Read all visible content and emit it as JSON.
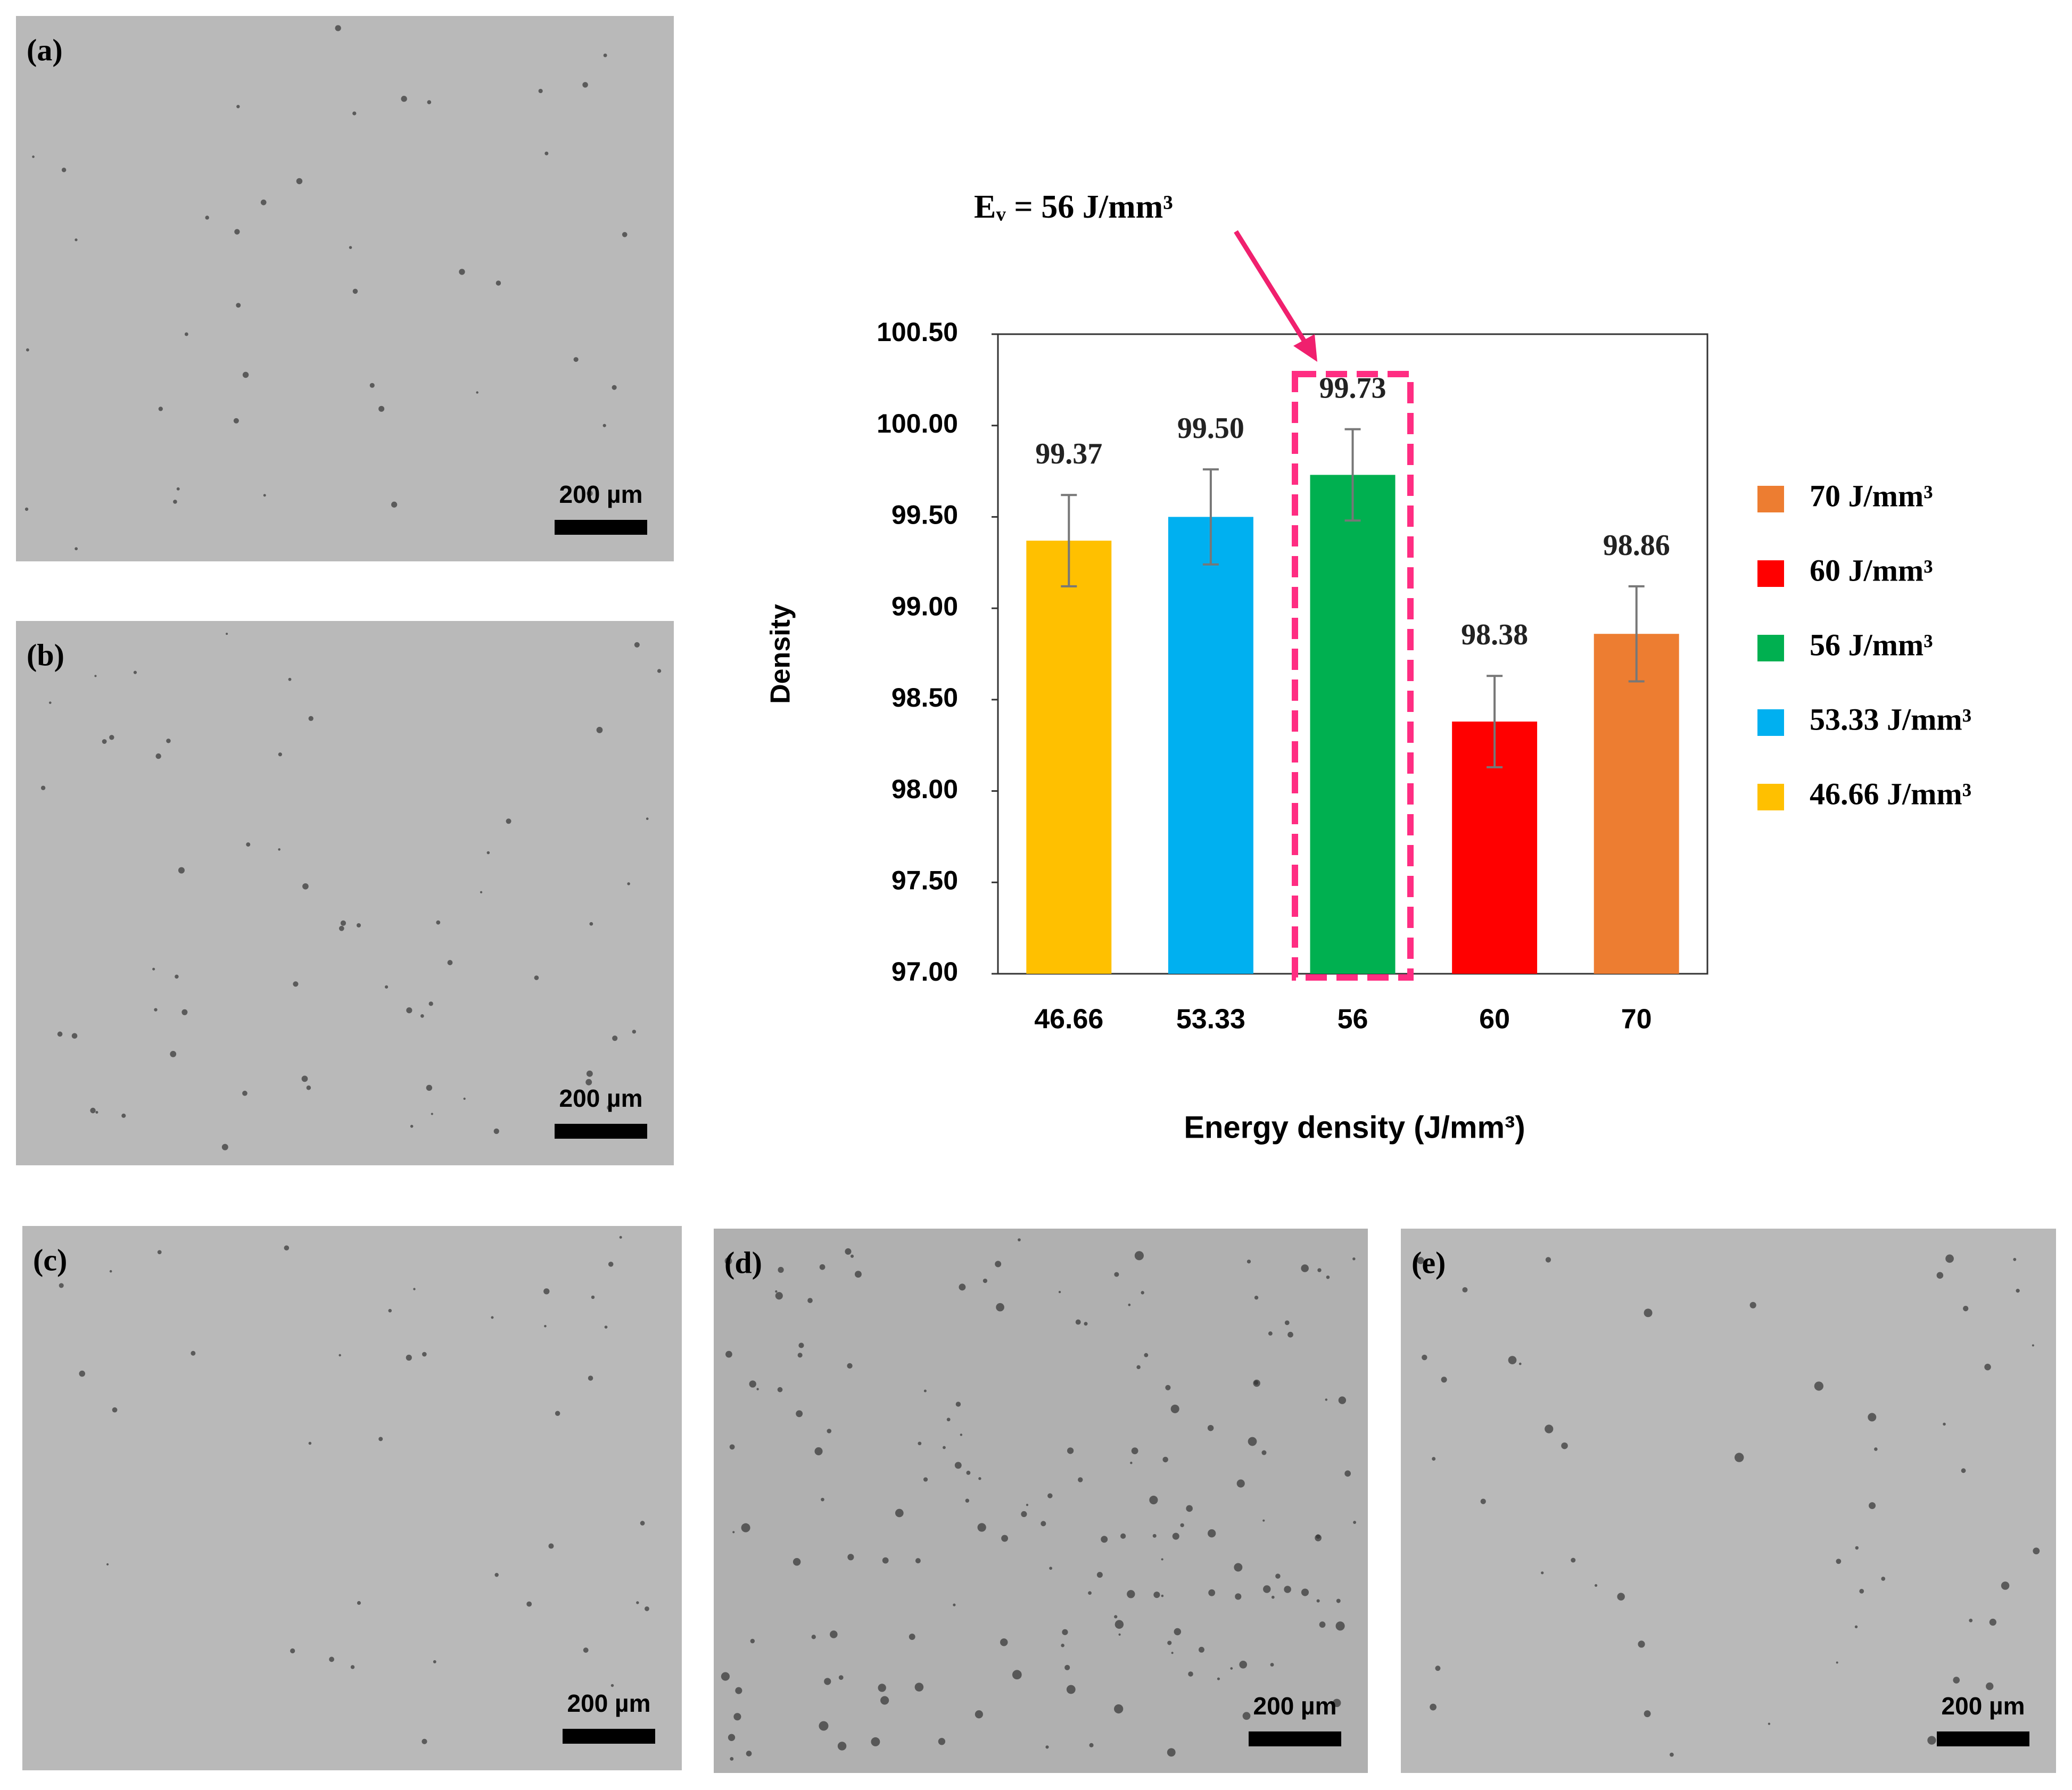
{
  "panels": [
    {
      "label": "(a)",
      "scale_bar": "200 µm"
    },
    {
      "label": "(b)",
      "scale_bar": "200 µm"
    },
    {
      "label": "(c)",
      "scale_bar": "200 µm"
    },
    {
      "label": "(d)",
      "scale_bar": "200 µm"
    },
    {
      "label": "(e)",
      "scale_bar": "200 µm"
    }
  ],
  "chart_data": {
    "type": "bar",
    "annotation": "Eᵥ = 56 J/mm³",
    "x_label": "Energy density (J/mm³)",
    "y_label": "Density",
    "categories": [
      "46.66",
      "53.33",
      "56",
      "60",
      "70"
    ],
    "values": [
      99.37,
      99.5,
      99.73,
      98.38,
      98.86
    ],
    "value_labels": [
      "99.37",
      "99.50",
      "99.73",
      "98.38",
      "98.86"
    ],
    "errors": [
      0.25,
      0.26,
      0.25,
      0.25,
      0.26
    ],
    "colors": [
      "#ffc000",
      "#00b0f0",
      "#00b050",
      "#ff0000",
      "#ed7d31"
    ],
    "legend_labels": [
      "46.66 J/mm³",
      "53.33 J/mm³",
      "56 J/mm³",
      "60 J/mm³",
      "70 J/mm³"
    ],
    "ylim": [
      97,
      100.5
    ],
    "yticks": [
      {
        "value": 97,
        "label": "97.00"
      },
      {
        "value": 97.5,
        "label": "97.50"
      },
      {
        "value": 98,
        "label": "98.00"
      },
      {
        "value": 98.5,
        "label": "98.50"
      },
      {
        "value": 99,
        "label": "99.00"
      },
      {
        "value": 99.5,
        "label": "99.50"
      },
      {
        "value": 100,
        "label": "100.00"
      },
      {
        "value": 100.5,
        "label": "100.50"
      }
    ]
  }
}
